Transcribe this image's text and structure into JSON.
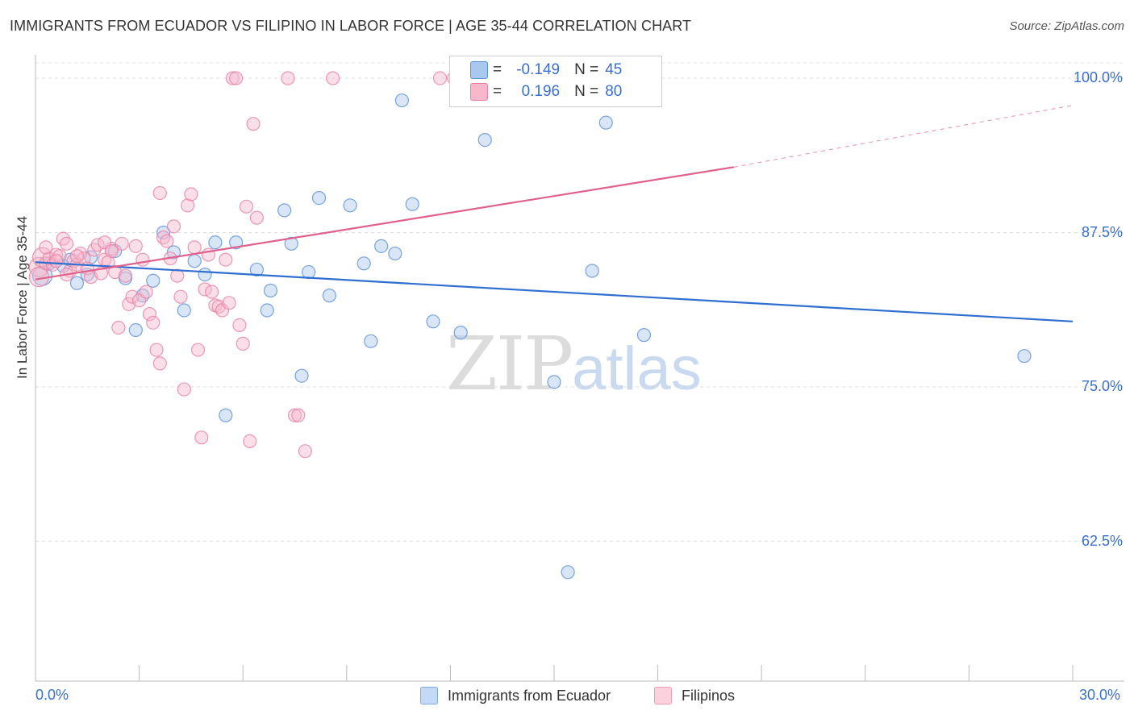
{
  "title": "IMMIGRANTS FROM ECUADOR VS FILIPINO IN LABOR FORCE | AGE 35-44 CORRELATION CHART",
  "source": "Source: ZipAtlas.com",
  "watermark": {
    "zip": "ZIP",
    "atlas": "atlas"
  },
  "legend_top": [
    {
      "r_label": "R =",
      "r_value": "-0.149",
      "n_label": "N =",
      "n_value": "45",
      "color": "#a8c8f0"
    },
    {
      "r_label": "R =",
      "r_value": "0.196",
      "n_label": "N =",
      "n_value": "80",
      "color": "#f7b8cc"
    }
  ],
  "legend_bottom": [
    {
      "label": "Immigrants from Ecuador",
      "color": "#a8c8f0"
    },
    {
      "label": "Filipinos",
      "color": "#f7b8cc"
    }
  ],
  "chart_data": {
    "type": "scatter",
    "title": "IMMIGRANTS FROM ECUADOR VS FILIPINO IN LABOR FORCE | AGE 35-44 CORRELATION CHART",
    "ylabel": "In Labor Force | Age 35-44",
    "xlabel": "",
    "xlim": [
      0,
      30
    ],
    "ylim": [
      50,
      100
    ],
    "x_tick_labels": [
      "0.0%",
      "30.0%"
    ],
    "y_ticks": [
      62.5,
      75.0,
      87.5,
      100.0
    ],
    "y_tick_labels": [
      "62.5%",
      "75.0%",
      "87.5%",
      "100.0%"
    ],
    "grid": true,
    "legend_position": "top-center",
    "series": [
      {
        "name": "Immigrants from Ecuador",
        "color": "#5b8fd9",
        "fill": "#a8c8f0",
        "trend": {
          "x": [
            0,
            30
          ],
          "y": [
            85.1,
            80.3
          ],
          "color": "#2f6fd0"
        },
        "points": [
          [
            0.2,
            84.0
          ],
          [
            0.4,
            85.0
          ],
          [
            0.8,
            84.8
          ],
          [
            1.0,
            85.3
          ],
          [
            1.2,
            83.4
          ],
          [
            1.5,
            84.1
          ],
          [
            1.6,
            85.5
          ],
          [
            2.3,
            86.0
          ],
          [
            2.6,
            83.8
          ],
          [
            2.9,
            79.6
          ],
          [
            3.1,
            82.4
          ],
          [
            3.4,
            83.6
          ],
          [
            3.7,
            87.5
          ],
          [
            4.0,
            85.9
          ],
          [
            4.3,
            81.2
          ],
          [
            4.6,
            85.2
          ],
          [
            4.9,
            84.1
          ],
          [
            5.2,
            86.7
          ],
          [
            5.5,
            72.7
          ],
          [
            5.8,
            86.7
          ],
          [
            6.4,
            84.5
          ],
          [
            6.7,
            81.2
          ],
          [
            6.8,
            82.8
          ],
          [
            7.2,
            89.3
          ],
          [
            7.4,
            86.6
          ],
          [
            7.7,
            75.9
          ],
          [
            7.9,
            84.3
          ],
          [
            8.2,
            90.3
          ],
          [
            8.5,
            82.4
          ],
          [
            9.1,
            89.7
          ],
          [
            9.5,
            85.0
          ],
          [
            9.7,
            78.7
          ],
          [
            10.0,
            86.4
          ],
          [
            10.4,
            85.8
          ],
          [
            10.6,
            98.2
          ],
          [
            10.9,
            89.8
          ],
          [
            11.5,
            80.3
          ],
          [
            12.3,
            79.4
          ],
          [
            13.0,
            95.0
          ],
          [
            15.0,
            75.4
          ],
          [
            15.4,
            60.0
          ],
          [
            16.1,
            84.4
          ],
          [
            16.5,
            96.4
          ],
          [
            17.6,
            79.2
          ],
          [
            28.6,
            77.5
          ]
        ]
      },
      {
        "name": "Filipinos",
        "color": "#e880a4",
        "fill": "#f7b8cc",
        "trend": {
          "x": [
            0,
            20.2
          ],
          "y": [
            83.7,
            92.8
          ],
          "color": "#e0608e",
          "dashed_extension": {
            "x": [
              20.2,
              30
            ],
            "y": [
              92.8,
              97.8
            ]
          }
        },
        "points": [
          [
            0.1,
            84.7
          ],
          [
            0.2,
            85.5
          ],
          [
            0.3,
            85.0
          ],
          [
            0.4,
            85.4
          ],
          [
            0.5,
            84.9
          ],
          [
            0.6,
            85.7
          ],
          [
            0.7,
            85.6
          ],
          [
            0.8,
            87.0
          ],
          [
            0.9,
            86.6
          ],
          [
            1.0,
            84.4
          ],
          [
            1.1,
            85.2
          ],
          [
            1.2,
            84.9
          ],
          [
            1.3,
            85.8
          ],
          [
            1.4,
            85.4
          ],
          [
            1.5,
            84.6
          ],
          [
            1.6,
            83.9
          ],
          [
            1.7,
            86.1
          ],
          [
            1.8,
            86.5
          ],
          [
            1.9,
            84.2
          ],
          [
            2.0,
            85.3
          ],
          [
            2.1,
            85.1
          ],
          [
            2.2,
            86.2
          ],
          [
            2.3,
            84.3
          ],
          [
            2.4,
            79.8
          ],
          [
            2.5,
            86.6
          ],
          [
            2.6,
            84.0
          ],
          [
            2.7,
            81.7
          ],
          [
            2.8,
            82.3
          ],
          [
            2.9,
            86.4
          ],
          [
            3.0,
            82.0
          ],
          [
            3.1,
            85.3
          ],
          [
            3.2,
            82.7
          ],
          [
            3.3,
            80.9
          ],
          [
            3.4,
            80.2
          ],
          [
            3.5,
            78.0
          ],
          [
            3.6,
            76.9
          ],
          [
            3.7,
            87.1
          ],
          [
            3.8,
            86.8
          ],
          [
            3.9,
            85.4
          ],
          [
            4.0,
            88.0
          ],
          [
            4.1,
            84.0
          ],
          [
            4.2,
            82.3
          ],
          [
            4.3,
            74.8
          ],
          [
            4.4,
            89.7
          ],
          [
            4.5,
            90.6
          ],
          [
            4.6,
            86.3
          ],
          [
            4.7,
            78.0
          ],
          [
            4.8,
            70.9
          ],
          [
            4.9,
            82.9
          ],
          [
            5.0,
            85.7
          ],
          [
            5.1,
            82.7
          ],
          [
            5.2,
            81.6
          ],
          [
            5.3,
            81.5
          ],
          [
            5.4,
            81.2
          ],
          [
            5.5,
            85.3
          ],
          [
            5.6,
            81.8
          ],
          [
            5.7,
            100.0
          ],
          [
            5.8,
            100.0
          ],
          [
            5.9,
            80.0
          ],
          [
            6.0,
            78.5
          ],
          [
            6.1,
            89.6
          ],
          [
            6.2,
            70.6
          ],
          [
            6.3,
            96.3
          ],
          [
            6.4,
            88.7
          ],
          [
            7.3,
            100.0
          ],
          [
            7.5,
            72.7
          ],
          [
            7.6,
            72.7
          ],
          [
            7.8,
            69.8
          ],
          [
            8.6,
            100.0
          ],
          [
            11.7,
            100.0
          ],
          [
            12.1,
            100.0
          ],
          [
            0.1,
            83.9
          ],
          [
            0.3,
            86.3
          ],
          [
            0.6,
            85.2
          ],
          [
            0.9,
            84.1
          ],
          [
            1.2,
            85.6
          ],
          [
            2.0,
            86.7
          ],
          [
            2.2,
            86.0
          ],
          [
            3.6,
            90.7
          ],
          [
            16.6,
            100.0
          ]
        ]
      }
    ]
  }
}
